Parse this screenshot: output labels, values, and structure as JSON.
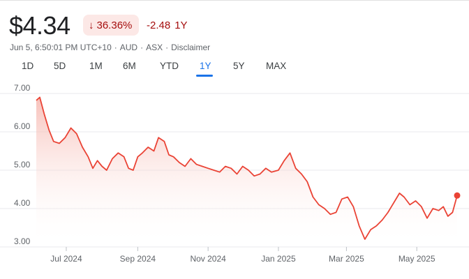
{
  "header": {
    "price": "$4.34",
    "change_pct": "36.36%",
    "change_abs": "-2.48",
    "change_period": "1Y",
    "arrow_icon": "arrow-down-icon",
    "meta": {
      "timestamp": "Jun 5, 6:50:01 PM UTC+10",
      "currency": "AUD",
      "exchange": "ASX",
      "disclaimer": "Disclaimer",
      "sep": "·"
    }
  },
  "tabs": [
    {
      "label": "1D",
      "active": false
    },
    {
      "label": "5D",
      "active": false
    },
    {
      "label": "1M",
      "active": false
    },
    {
      "label": "6M",
      "active": false
    },
    {
      "label": "YTD",
      "active": false
    },
    {
      "label": "1Y",
      "active": true
    },
    {
      "label": "5Y",
      "active": false
    },
    {
      "label": "MAX",
      "active": false
    }
  ],
  "colors": {
    "line": "#ea4335",
    "area_top": "#f6b6ae",
    "grid": "#e8eaed",
    "tick": "#5f6368"
  },
  "chart_data": {
    "type": "area",
    "x": [
      "2024-06-05",
      "2024-06-08",
      "2024-06-12",
      "2024-06-16",
      "2024-06-20",
      "2024-06-25",
      "2024-06-30",
      "2024-07-05",
      "2024-07-10",
      "2024-07-15",
      "2024-07-20",
      "2024-07-24",
      "2024-07-28",
      "2024-08-01",
      "2024-08-05",
      "2024-08-10",
      "2024-08-15",
      "2024-08-20",
      "2024-08-24",
      "2024-08-28",
      "2024-09-01",
      "2024-09-05",
      "2024-09-10",
      "2024-09-15",
      "2024-09-19",
      "2024-09-24",
      "2024-09-28",
      "2024-10-02",
      "2024-10-07",
      "2024-10-12",
      "2024-10-17",
      "2024-10-22",
      "2024-10-27",
      "2024-11-01",
      "2024-11-06",
      "2024-11-11",
      "2024-11-16",
      "2024-11-21",
      "2024-11-26",
      "2024-12-01",
      "2024-12-06",
      "2024-12-11",
      "2024-12-16",
      "2024-12-21",
      "2024-12-26",
      "2025-01-01",
      "2025-01-06",
      "2025-01-11",
      "2025-01-16",
      "2025-01-21",
      "2025-01-26",
      "2025-01-31",
      "2025-02-05",
      "2025-02-10",
      "2025-02-15",
      "2025-02-20",
      "2025-02-25",
      "2025-03-02",
      "2025-03-07",
      "2025-03-12",
      "2025-03-17",
      "2025-03-22",
      "2025-03-27",
      "2025-04-01",
      "2025-04-06",
      "2025-04-09",
      "2025-04-12",
      "2025-04-16",
      "2025-04-20",
      "2025-04-25",
      "2025-04-30",
      "2025-05-05",
      "2025-05-10",
      "2025-05-15",
      "2025-05-20",
      "2025-05-24",
      "2025-05-28",
      "2025-06-01",
      "2025-06-05"
    ],
    "y": [
      6.82,
      6.9,
      6.45,
      6.05,
      5.75,
      5.7,
      5.85,
      6.1,
      5.95,
      5.6,
      5.35,
      5.05,
      5.25,
      5.1,
      5.0,
      5.3,
      5.45,
      5.35,
      5.05,
      5.0,
      5.35,
      5.45,
      5.6,
      5.5,
      5.85,
      5.75,
      5.4,
      5.35,
      5.2,
      5.1,
      5.3,
      5.15,
      5.1,
      5.05,
      5.0,
      4.95,
      5.1,
      5.05,
      4.9,
      5.1,
      5.0,
      4.85,
      4.9,
      5.05,
      4.95,
      5.0,
      5.25,
      5.45,
      5.05,
      4.9,
      4.7,
      4.3,
      4.1,
      4.0,
      3.85,
      3.9,
      4.25,
      4.3,
      4.05,
      3.55,
      3.2,
      3.45,
      3.55,
      3.7,
      3.9,
      4.05,
      4.2,
      4.4,
      4.3,
      4.1,
      4.2,
      4.05,
      3.75,
      4.0,
      3.95,
      4.05,
      3.8,
      3.9,
      4.34
    ],
    "ylim": [
      3.0,
      7.0
    ],
    "yticks": [
      "3.00",
      "4.00",
      "5.00",
      "6.00",
      "7.00"
    ],
    "xticks": [
      {
        "label": "Jul 2024",
        "date": "2024-07-01"
      },
      {
        "label": "Sep 2024",
        "date": "2024-09-01"
      },
      {
        "label": "Nov 2024",
        "date": "2024-11-01"
      },
      {
        "label": "Jan 2025",
        "date": "2025-01-01"
      },
      {
        "label": "Mar 2025",
        "date": "2025-03-01"
      },
      {
        "label": "May 2025",
        "date": "2025-05-01"
      }
    ],
    "grid": true
  }
}
